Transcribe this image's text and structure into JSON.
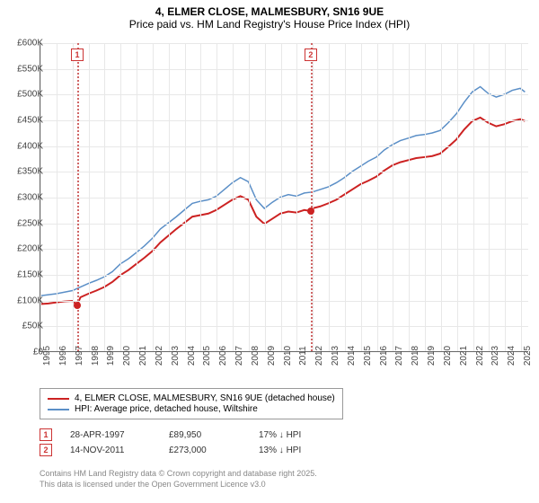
{
  "title": {
    "line1": "4, ELMER CLOSE, MALMESBURY, SN16 9UE",
    "line2": "Price paid vs. HM Land Registry's House Price Index (HPI)"
  },
  "chart": {
    "type": "line",
    "background_color": "#ffffff",
    "grid_color": "#e8e8e8",
    "axis_color": "#666666",
    "label_fontsize": 10,
    "label_color": "#444444",
    "xlim": [
      1995,
      2025.5
    ],
    "ylim": [
      0,
      600
    ],
    "ytick_step": 50,
    "yticks": [
      "£0",
      "£50K",
      "£100K",
      "£150K",
      "£200K",
      "£250K",
      "£300K",
      "£350K",
      "£400K",
      "£450K",
      "£500K",
      "£550K",
      "£600K"
    ],
    "xticks": [
      1995,
      1996,
      1997,
      1998,
      1999,
      2000,
      2001,
      2002,
      2003,
      2004,
      2005,
      2006,
      2007,
      2008,
      2009,
      2010,
      2011,
      2012,
      2013,
      2014,
      2015,
      2016,
      2017,
      2018,
      2019,
      2020,
      2021,
      2022,
      2023,
      2024,
      2025
    ],
    "series": [
      {
        "name": "hpi",
        "label": "HPI: Average price, detached house, Wiltshire",
        "color": "#5b8fc7",
        "line_width": 1.5,
        "points": [
          [
            1995,
            108
          ],
          [
            1995.5,
            110
          ],
          [
            1996,
            112
          ],
          [
            1996.5,
            115
          ],
          [
            1997,
            118
          ],
          [
            1997.5,
            125
          ],
          [
            1998,
            132
          ],
          [
            1998.5,
            138
          ],
          [
            1999,
            145
          ],
          [
            1999.5,
            155
          ],
          [
            2000,
            170
          ],
          [
            2000.5,
            180
          ],
          [
            2001,
            192
          ],
          [
            2001.5,
            205
          ],
          [
            2002,
            220
          ],
          [
            2002.5,
            238
          ],
          [
            2003,
            250
          ],
          [
            2003.5,
            262
          ],
          [
            2004,
            275
          ],
          [
            2004.5,
            288
          ],
          [
            2005,
            292
          ],
          [
            2005.5,
            295
          ],
          [
            2006,
            302
          ],
          [
            2006.5,
            315
          ],
          [
            2007,
            328
          ],
          [
            2007.5,
            338
          ],
          [
            2008,
            330
          ],
          [
            2008.5,
            295
          ],
          [
            2009,
            278
          ],
          [
            2009.5,
            290
          ],
          [
            2010,
            300
          ],
          [
            2010.5,
            305
          ],
          [
            2011,
            302
          ],
          [
            2011.5,
            308
          ],
          [
            2012,
            310
          ],
          [
            2012.5,
            315
          ],
          [
            2013,
            320
          ],
          [
            2013.5,
            328
          ],
          [
            2014,
            338
          ],
          [
            2014.5,
            350
          ],
          [
            2015,
            360
          ],
          [
            2015.5,
            370
          ],
          [
            2016,
            378
          ],
          [
            2016.5,
            392
          ],
          [
            2017,
            402
          ],
          [
            2017.5,
            410
          ],
          [
            2018,
            415
          ],
          [
            2018.5,
            420
          ],
          [
            2019,
            422
          ],
          [
            2019.5,
            425
          ],
          [
            2020,
            430
          ],
          [
            2020.5,
            445
          ],
          [
            2021,
            462
          ],
          [
            2021.5,
            485
          ],
          [
            2022,
            505
          ],
          [
            2022.5,
            515
          ],
          [
            2023,
            502
          ],
          [
            2023.5,
            495
          ],
          [
            2024,
            500
          ],
          [
            2024.5,
            508
          ],
          [
            2025,
            512
          ],
          [
            2025.3,
            505
          ]
        ]
      },
      {
        "name": "subject",
        "label": "4, ELMER CLOSE, MALMESBURY, SN16 9UE (detached house)",
        "color": "#cc2222",
        "line_width": 2,
        "points": [
          [
            1995,
            92
          ],
          [
            1995.5,
            93
          ],
          [
            1996,
            95
          ],
          [
            1996.5,
            97
          ],
          [
            1997,
            98
          ],
          [
            1997.3,
            90
          ],
          [
            1997.5,
            105
          ],
          [
            1998,
            112
          ],
          [
            1998.5,
            118
          ],
          [
            1999,
            125
          ],
          [
            1999.5,
            135
          ],
          [
            2000,
            148
          ],
          [
            2000.5,
            158
          ],
          [
            2001,
            170
          ],
          [
            2001.5,
            182
          ],
          [
            2002,
            195
          ],
          [
            2002.5,
            212
          ],
          [
            2003,
            225
          ],
          [
            2003.5,
            238
          ],
          [
            2004,
            250
          ],
          [
            2004.5,
            262
          ],
          [
            2005,
            265
          ],
          [
            2005.5,
            268
          ],
          [
            2006,
            275
          ],
          [
            2006.5,
            285
          ],
          [
            2007,
            295
          ],
          [
            2007.5,
            302
          ],
          [
            2008,
            295
          ],
          [
            2008.5,
            262
          ],
          [
            2009,
            248
          ],
          [
            2009.5,
            258
          ],
          [
            2010,
            268
          ],
          [
            2010.5,
            272
          ],
          [
            2011,
            270
          ],
          [
            2011.5,
            275
          ],
          [
            2011.87,
            273
          ],
          [
            2012,
            278
          ],
          [
            2012.5,
            282
          ],
          [
            2013,
            288
          ],
          [
            2013.5,
            295
          ],
          [
            2014,
            305
          ],
          [
            2014.5,
            315
          ],
          [
            2015,
            325
          ],
          [
            2015.5,
            332
          ],
          [
            2016,
            340
          ],
          [
            2016.5,
            352
          ],
          [
            2017,
            362
          ],
          [
            2017.5,
            368
          ],
          [
            2018,
            372
          ],
          [
            2018.5,
            376
          ],
          [
            2019,
            378
          ],
          [
            2019.5,
            380
          ],
          [
            2020,
            385
          ],
          [
            2020.5,
            398
          ],
          [
            2021,
            412
          ],
          [
            2021.5,
            432
          ],
          [
            2022,
            448
          ],
          [
            2022.5,
            455
          ],
          [
            2023,
            445
          ],
          [
            2023.5,
            438
          ],
          [
            2024,
            442
          ],
          [
            2024.5,
            448
          ],
          [
            2025,
            452
          ],
          [
            2025.3,
            448
          ]
        ]
      }
    ],
    "markers": [
      {
        "id": "1",
        "x": 1997.3,
        "y": 90,
        "color": "#cc2222"
      },
      {
        "id": "2",
        "x": 2011.87,
        "y": 273,
        "color": "#cc2222"
      }
    ],
    "marker_line_color": "#d06666",
    "marker_box_border": "#cc3333",
    "marker_box_text": "#cc3333"
  },
  "transactions": [
    {
      "id": "1",
      "date": "28-APR-1997",
      "price": "£89,950",
      "diff": "17% ↓ HPI"
    },
    {
      "id": "2",
      "date": "14-NOV-2011",
      "price": "£273,000",
      "diff": "13% ↓ HPI"
    }
  ],
  "footer": {
    "line1": "Contains HM Land Registry data © Crown copyright and database right 2025.",
    "line2": "This data is licensed under the Open Government Licence v3.0"
  }
}
